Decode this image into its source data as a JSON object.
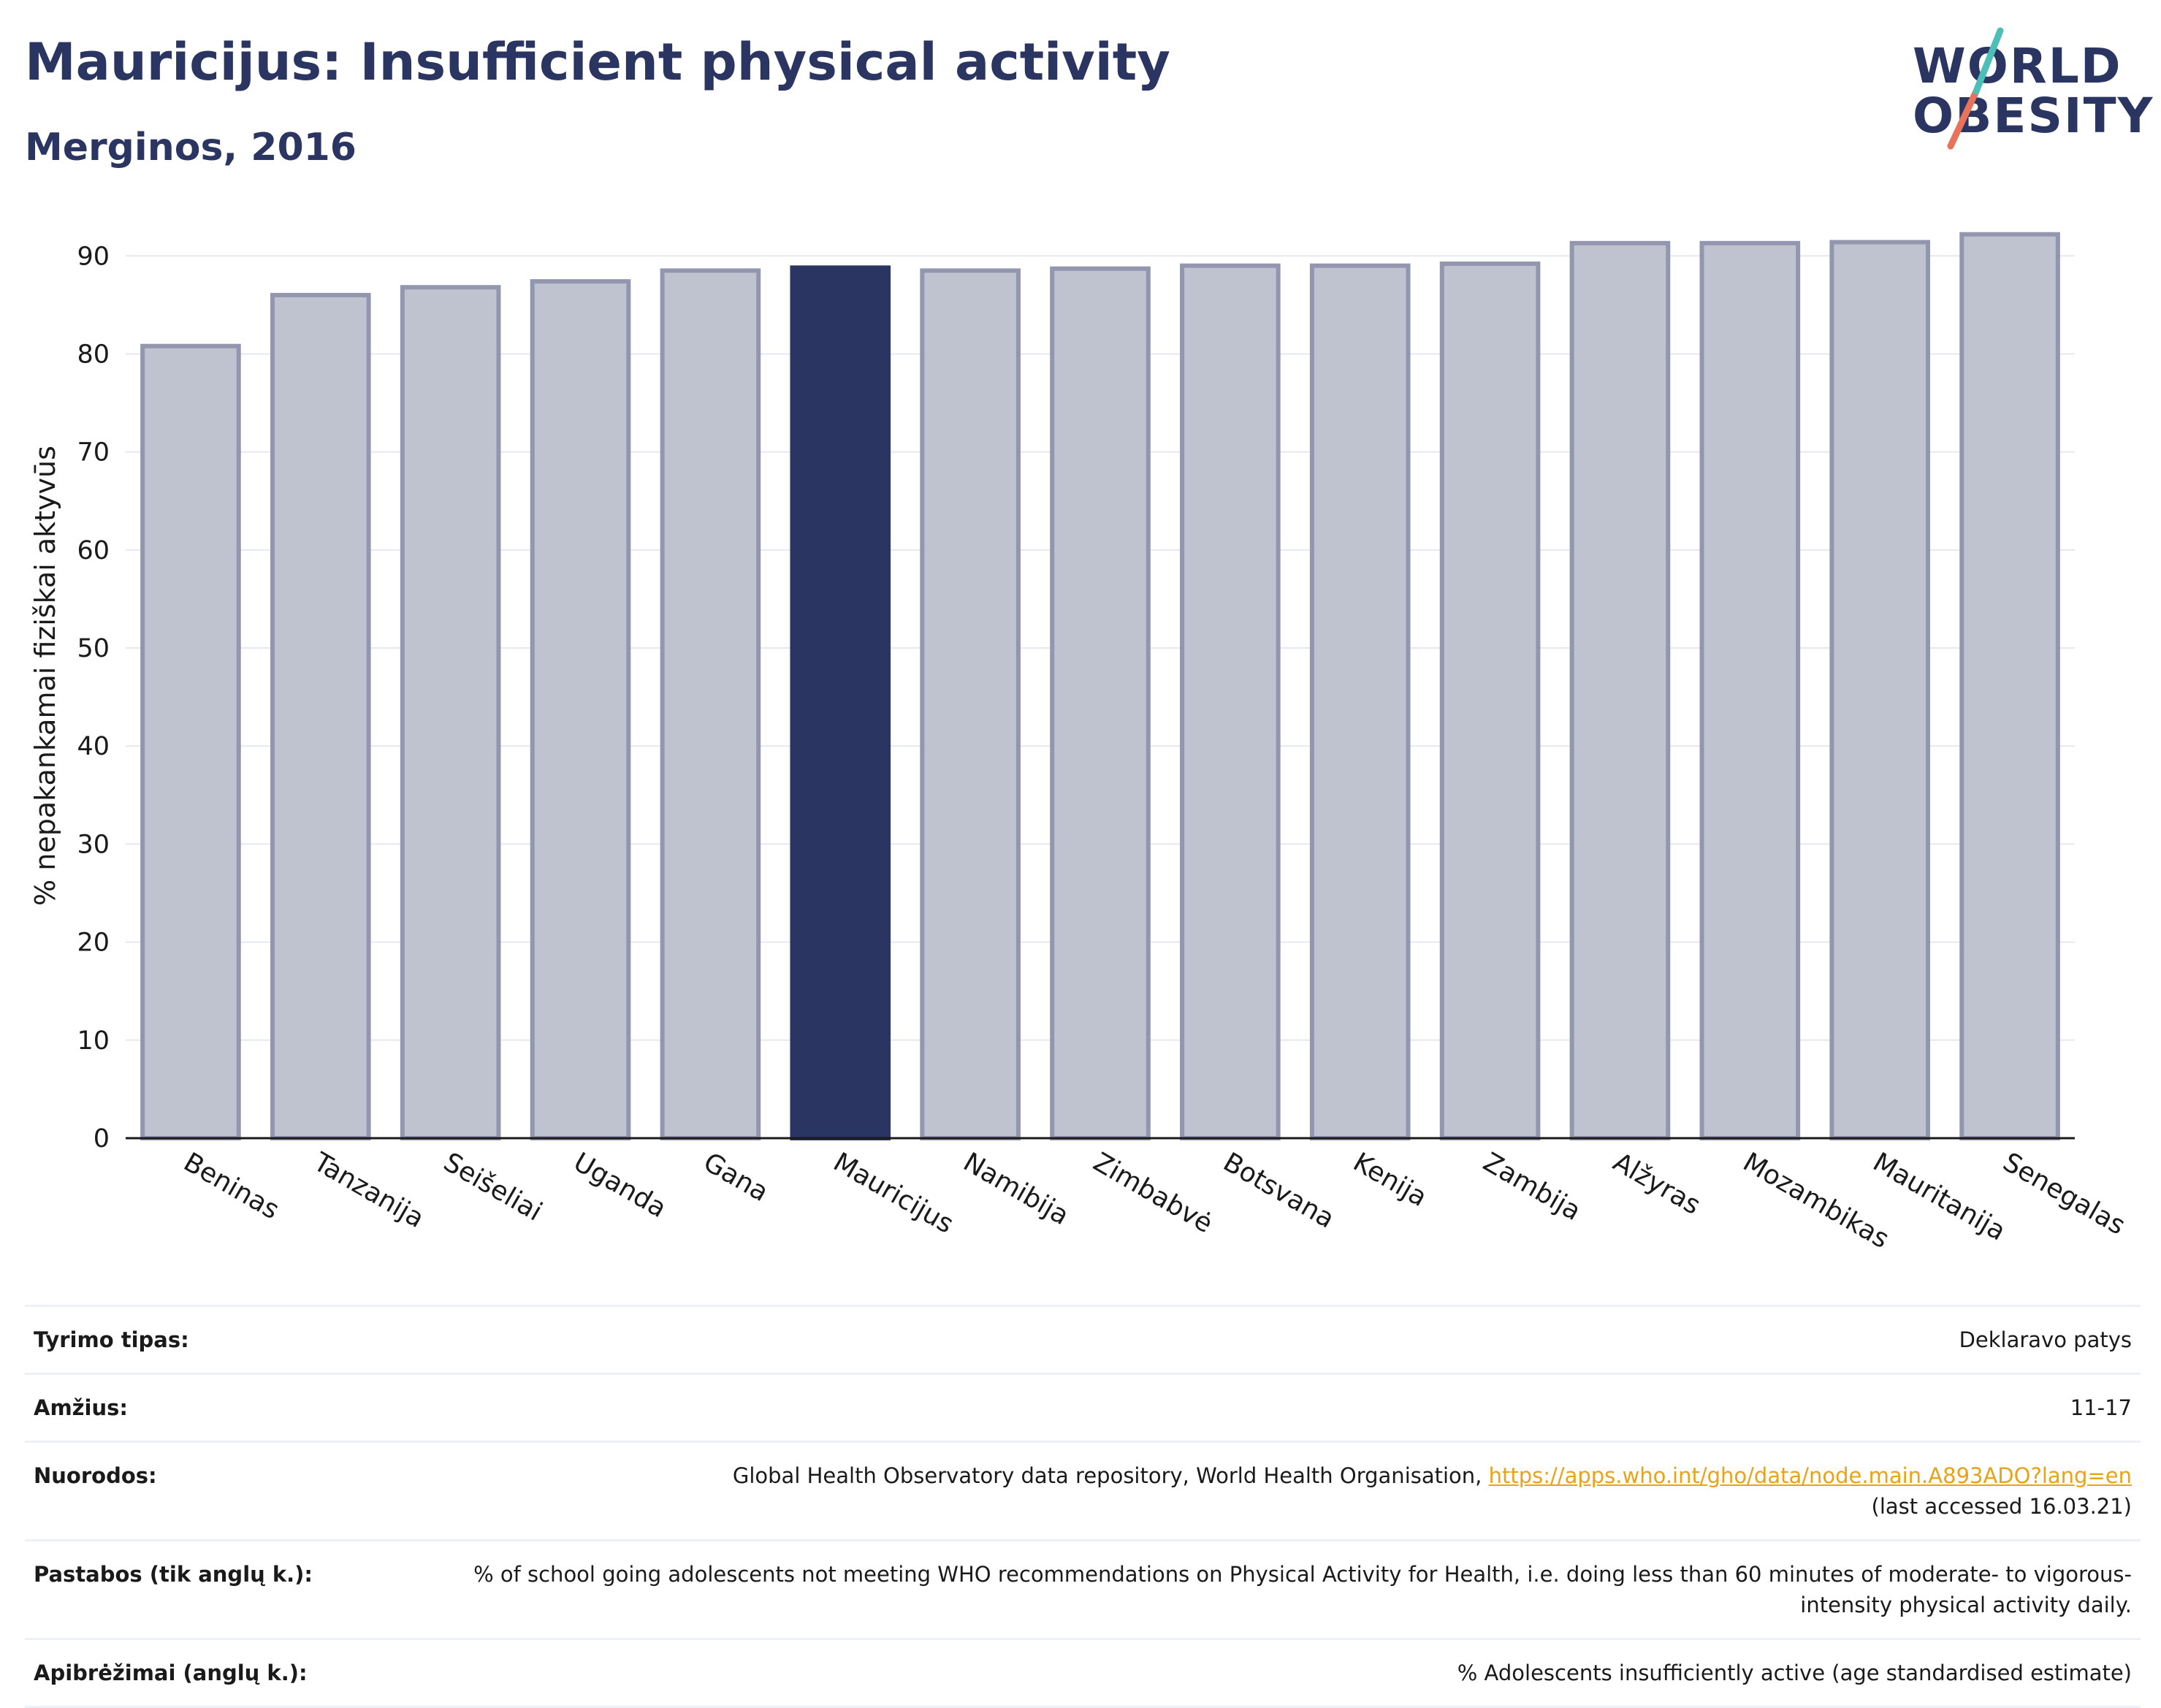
{
  "title": "Mauricijus: Insufficient physical activity",
  "subtitle": "Merginos, 2016",
  "logo": {
    "line1": "WORLD",
    "line2": "OBESITY"
  },
  "colors": {
    "highlight": "#2b3561",
    "bar_fill": "#bfc2cf",
    "bar_stroke": "#9297af",
    "title": "#2b3561",
    "link": "#e8a317"
  },
  "chart_data": {
    "type": "bar",
    "ylabel": "% nepakankamai fiziškai aktyvūs",
    "xlabel": "",
    "ylim": [
      0,
      93
    ],
    "yticks": [
      0,
      10,
      20,
      30,
      40,
      50,
      60,
      70,
      80,
      90
    ],
    "grid": true,
    "highlight_category": "Mauricijus",
    "categories": [
      "Beninas",
      "Tanzanija",
      "Seišeliai",
      "Uganda",
      "Gana",
      "Mauricijus",
      "Namibija",
      "Zimbabvė",
      "Botsvana",
      "Kenija",
      "Zambija",
      "Alžyras",
      "Mozambikas",
      "Mauritanija",
      "Senegalas"
    ],
    "values": [
      80.8,
      86.0,
      86.8,
      87.4,
      88.5,
      88.8,
      88.5,
      88.7,
      89.0,
      89.0,
      89.2,
      91.3,
      91.3,
      91.4,
      92.2
    ]
  },
  "info": {
    "survey_type": {
      "label": "Tyrimo tipas:",
      "value": "Deklaravo patys"
    },
    "age": {
      "label": "Amžius:",
      "value": "11-17"
    },
    "references": {
      "label": "Nuorodos:",
      "text": "Global Health Observatory data repository, World Health Organisation, ",
      "link": "https://apps.who.int/gho/data/node.main.A893ADO?lang=en",
      "suffix": "(last accessed 16.03.21)"
    },
    "notes": {
      "label": "Pastabos (tik anglų k.):",
      "value": "% of school going adolescents not meeting WHO recommendations on Physical Activity for Health, i.e. doing less than 60 minutes of moderate- to vigorous-intensity physical activity daily."
    },
    "definitions": {
      "label": "Apibrėžimai (anglų k.):",
      "value": "% Adolescents insufficiently active (age standardised estimate)"
    }
  }
}
